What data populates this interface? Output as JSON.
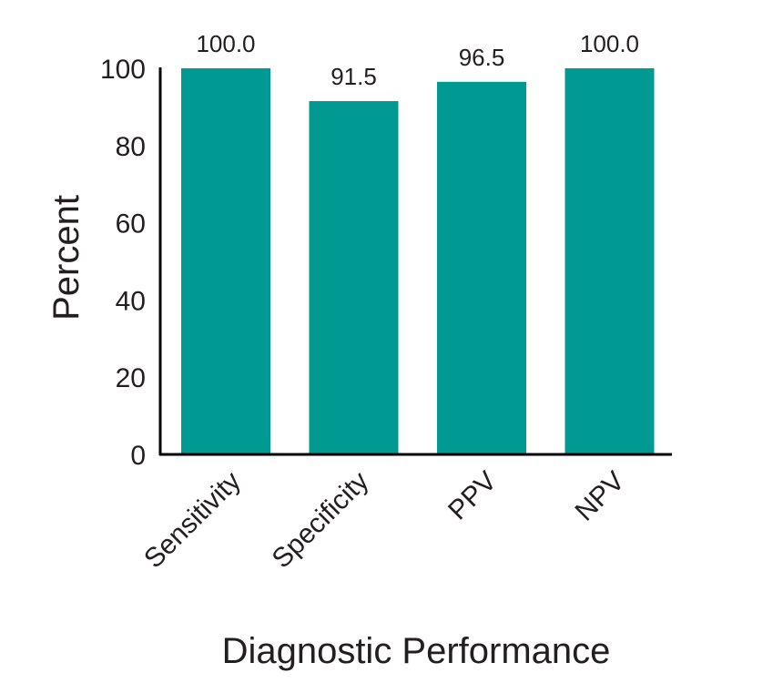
{
  "chart_data": {
    "type": "bar",
    "categories": [
      "Sensitivity",
      "Specificity",
      "PPV",
      "NPV"
    ],
    "values": [
      100.0,
      91.5,
      96.5,
      100.0
    ],
    "value_labels": [
      "100.0",
      "91.5",
      "96.5",
      "100.0"
    ],
    "xlabel": "Diagnostic Performance",
    "ylabel": "Percent",
    "ylim": [
      0,
      100
    ],
    "yticks": [
      0,
      20,
      40,
      60,
      80,
      100
    ],
    "grid": false,
    "legend": "none",
    "bar_color": "#009a93",
    "axis_color": "#000000",
    "text_color": "#231f20"
  }
}
